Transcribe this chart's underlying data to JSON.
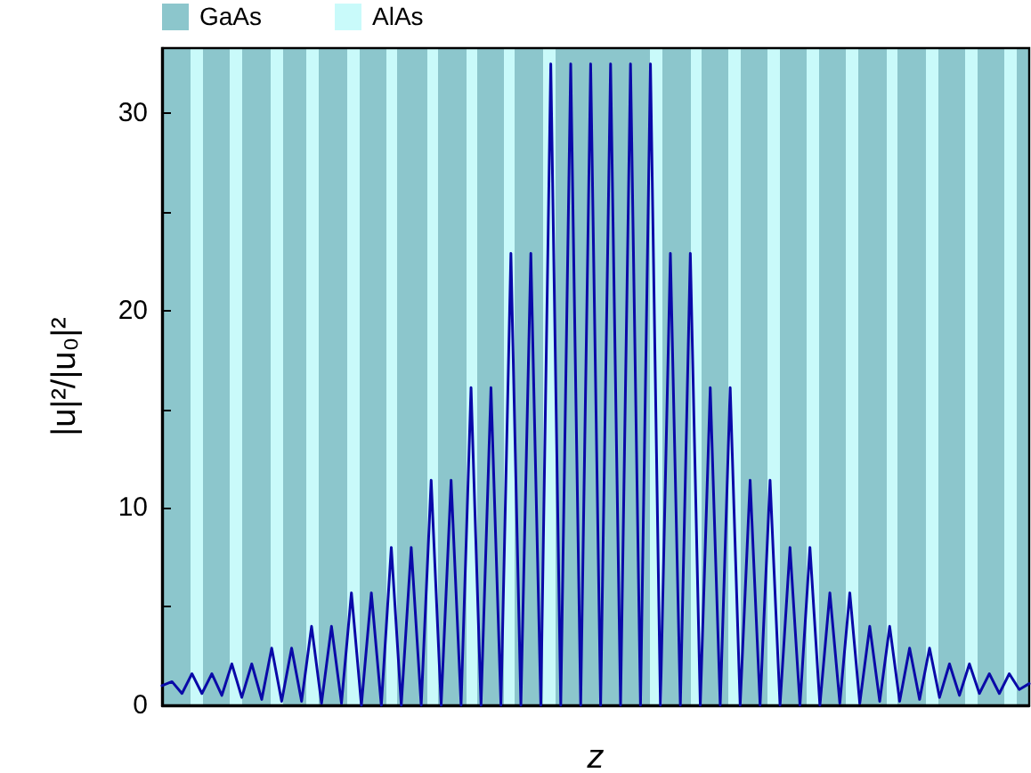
{
  "chart_data": {
    "type": "line",
    "xlabel": "z",
    "ylabel": "|u|²/|u₀|²",
    "annotations": [
      "GaAs",
      "AlAs"
    ],
    "categories": [
      null,
      null,
      null,
      null,
      null,
      null,
      null,
      null,
      null,
      null,
      null,
      null,
      null,
      null,
      null,
      null,
      null,
      null,
      null,
      null,
      null,
      null,
      null,
      null,
      null,
      null,
      null,
      null,
      null,
      null,
      null,
      null,
      null,
      null,
      null,
      null,
      null,
      null,
      null,
      null,
      null,
      null,
      null,
      null,
      null,
      null,
      null,
      null,
      null,
      null,
      null,
      null,
      null,
      null,
      null,
      null,
      null,
      null,
      null,
      null,
      null,
      null,
      null,
      null,
      null,
      null,
      null,
      null,
      null,
      null,
      null,
      null,
      null,
      null,
      null,
      null,
      null,
      null,
      null,
      null,
      null,
      null,
      null,
      null,
      null,
      null,
      null,
      null
    ],
    "ylim": [
      0,
      33.3
    ],
    "yticks": [
      0,
      {
        "value": 5,
        "label": null
      },
      10,
      {
        "value": 15,
        "label": null
      },
      20,
      {
        "value": 25,
        "label": null
      },
      30
    ],
    "tick_labels": "y",
    "line_style": "solid",
    "series": [
      {
        "color": "#0a0aa8",
        "values": [
          1.0,
          1.2,
          0.6,
          1.6,
          0.6,
          1.6,
          0.5,
          2.1,
          0.4,
          2.1,
          0.3,
          2.9,
          0.2,
          2.9,
          0.2,
          4.0,
          0.1,
          4.0,
          0.1,
          5.7,
          0,
          5.7,
          0,
          8.0,
          0,
          8.0,
          0,
          11.4,
          0,
          11.4,
          0,
          16.1,
          0,
          16.1,
          0,
          22.9,
          0,
          22.9,
          0,
          32.5,
          0,
          32.5,
          0,
          32.5,
          0,
          32.5,
          0,
          32.5,
          0,
          32.5,
          0,
          22.9,
          0,
          22.9,
          0,
          16.1,
          0,
          16.1,
          0,
          11.4,
          0,
          11.4,
          0,
          8.0,
          0,
          8.0,
          0,
          5.7,
          0.1,
          5.7,
          0.1,
          4.0,
          0.2,
          4.0,
          0.2,
          2.9,
          0.3,
          2.9,
          0.4,
          2.1,
          0.5,
          2.1,
          0.6,
          1.6,
          0.6,
          1.6,
          0.8,
          1.1
        ]
      }
    ]
  }
}
